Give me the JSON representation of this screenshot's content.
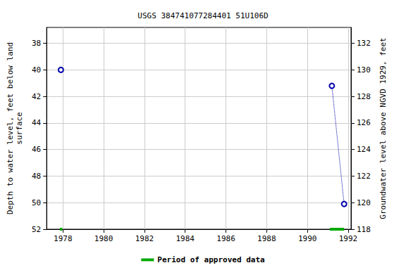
{
  "chart_data": {
    "type": "scatter",
    "title": "USGS 384741077284401 51U106D",
    "y_label": "Depth to water level, feet below land\nsurface",
    "y2_label": "Groundwater level above NGVD 1929, feet",
    "xlim": [
      1977.2,
      1992.14
    ],
    "xticks": [
      1978,
      1980,
      1982,
      1984,
      1986,
      1988,
      1990,
      1992
    ],
    "ylim": [
      52,
      36.8
    ],
    "yticks": [
      38,
      40,
      42,
      44,
      46,
      48,
      50,
      52
    ],
    "y2lim": [
      118,
      133.2
    ],
    "y2ticks": [
      118,
      120,
      122,
      124,
      126,
      128,
      130,
      132
    ],
    "grid": true,
    "legend": "bottom",
    "series": [
      {
        "color": "#0000aa",
        "marker": "circle",
        "line_style": "none",
        "x": [
          1977.9
        ],
        "values": [
          40.0
        ]
      },
      {
        "color": "#0000aa",
        "marker": "circle",
        "line_style": "dotted",
        "x": [
          1991.2,
          1991.8
        ],
        "values": [
          41.2,
          50.1
        ]
      }
    ],
    "approved_periods": {
      "name": "Period of approved data",
      "color": "#00aa00",
      "ranges": [
        [
          1977.85,
          1977.97
        ],
        [
          1991.1,
          1991.8
        ]
      ]
    }
  }
}
